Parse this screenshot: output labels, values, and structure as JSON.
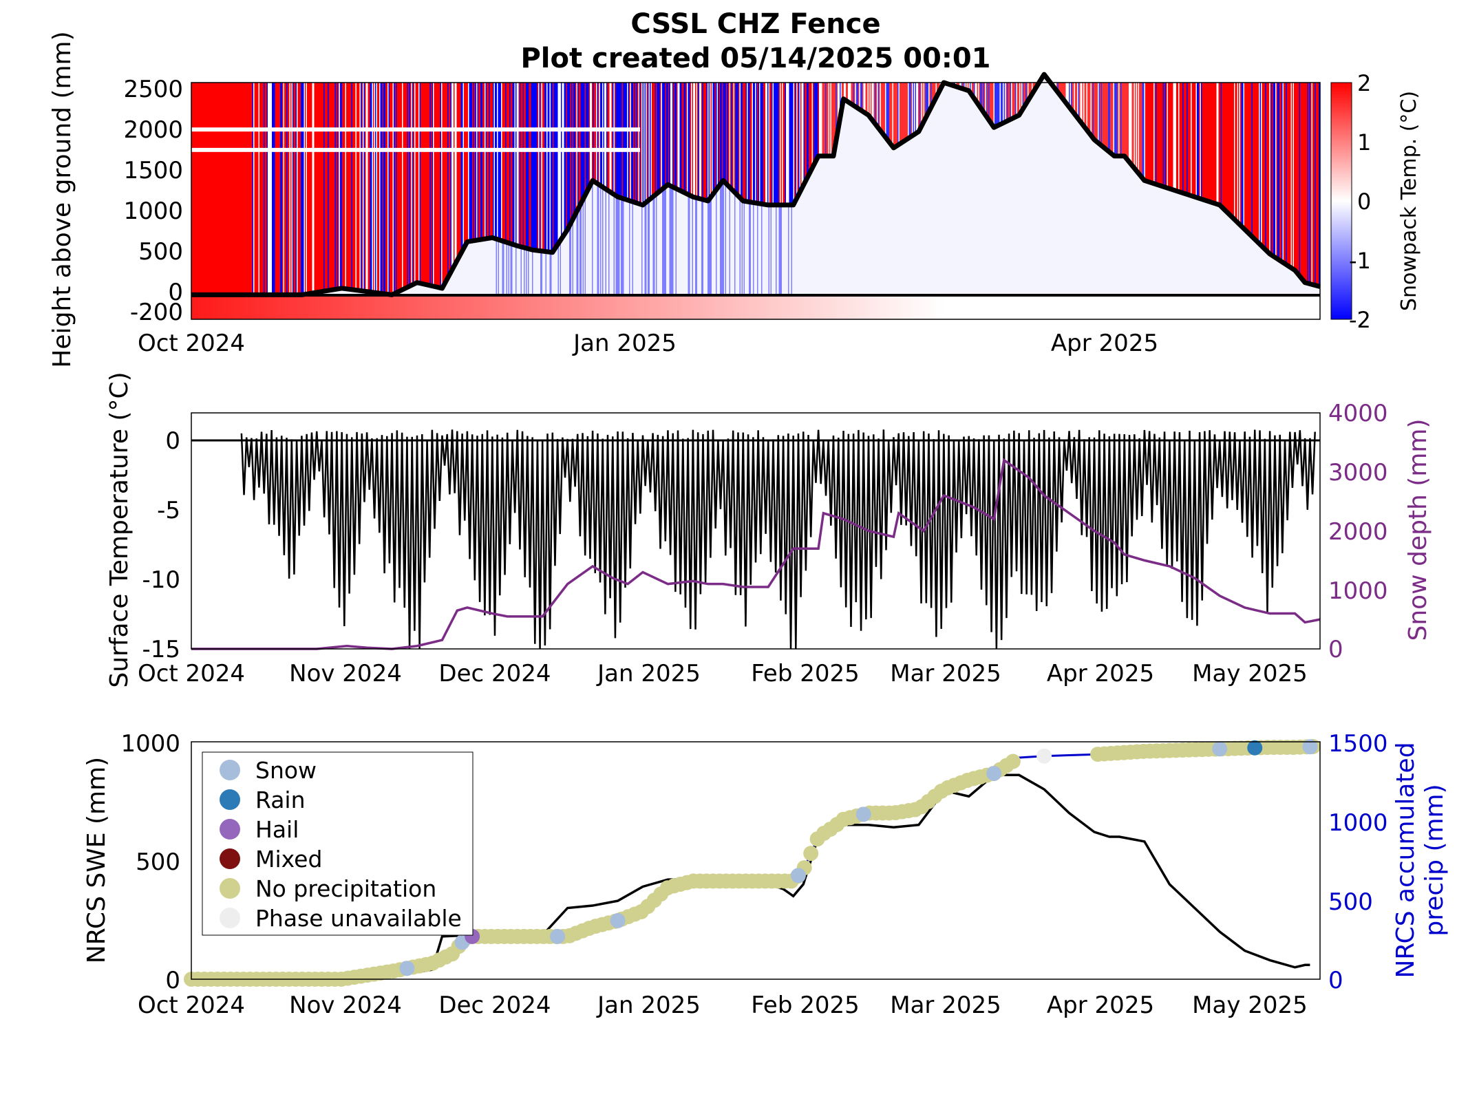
{
  "figure": {
    "title": "CSSL CHZ Fence",
    "subtitle": "Plot created 05/14/2025 00:01"
  },
  "colors": {
    "axes": "#000000",
    "warm": "#ff0000",
    "cold": "#0000ff",
    "snow_depth": "#7b2c86",
    "precip": "#0000cc",
    "snow": "#a6bddb",
    "rain": "#2c7bb6",
    "hail": "#9467bd",
    "mixed": "#7f1010",
    "no_precip": "#d1d18f",
    "unavailable": "#eeeeee"
  },
  "chart_data": [
    {
      "type": "heatmap",
      "ylabel": "Height above ground (mm)",
      "colorbar_label": "Snowpack Temp. (°C)",
      "colorbar_ticks": [
        "2",
        "1",
        "0",
        "-1",
        "-2"
      ],
      "clim": [
        -2,
        2
      ],
      "ylim": [
        -300,
        2600
      ],
      "yticks": [
        "2500",
        "2000",
        "1500",
        "1000",
        "500",
        "0",
        "-200"
      ],
      "xticks": [
        "Oct 2024",
        "Jan 2025",
        "Apr 2025"
      ],
      "xlim_days": [
        0,
        225
      ],
      "snow_depth_line": {
        "x_days": [
          0,
          22,
          30,
          40,
          45,
          50,
          55,
          60,
          65,
          68,
          72,
          75,
          80,
          85,
          90,
          95,
          100,
          103,
          106,
          110,
          115,
          120,
          125,
          128,
          130,
          135,
          140,
          145,
          150,
          155,
          160,
          165,
          170,
          175,
          180,
          184,
          186,
          190,
          195,
          200,
          205,
          210,
          215,
          220,
          222,
          225
        ],
        "y_mm": [
          0,
          0,
          80,
          0,
          150,
          80,
          650,
          700,
          600,
          550,
          520,
          800,
          1400,
          1200,
          1100,
          1350,
          1200,
          1150,
          1400,
          1150,
          1100,
          1100,
          1700,
          1700,
          2400,
          2200,
          1800,
          2000,
          2600,
          2500,
          2050,
          2200,
          2700,
          2300,
          1900,
          1700,
          1700,
          1400,
          1300,
          1200,
          1100,
          800,
          500,
          300,
          150,
          100
        ]
      }
    },
    {
      "type": "line",
      "ylabel": "Surface Temperature (°C)",
      "y2label": "Snow depth (mm)",
      "ylim": [
        -15,
        2
      ],
      "y2lim": [
        0,
        4000
      ],
      "yticks": [
        "0",
        "-5",
        "-10",
        "-15"
      ],
      "y2ticks": [
        "4000",
        "3000",
        "2000",
        "1000",
        "0"
      ],
      "xticks": [
        "Oct 2024",
        "Nov 2024",
        "Dec 2024",
        "Jan 2025",
        "Feb 2025",
        "Mar 2025",
        "Apr 2025",
        "May 2025"
      ],
      "xlim_days": [
        0,
        225
      ],
      "zero_line": 0,
      "snow_depth_series": {
        "x_days": [
          0,
          25,
          31,
          35,
          40,
          45,
          50,
          53,
          55,
          60,
          63,
          70,
          75,
          80,
          84,
          87,
          90,
          95,
          100,
          103,
          106,
          110,
          115,
          120,
          125,
          126,
          130,
          135,
          140,
          141,
          146,
          150,
          156,
          160,
          162,
          167,
          170,
          180,
          184,
          186,
          190,
          195,
          200,
          205,
          210,
          215,
          220,
          222,
          225
        ],
        "y_mm": [
          0,
          0,
          50,
          20,
          0,
          50,
          150,
          650,
          700,
          600,
          550,
          550,
          1100,
          1400,
          1200,
          1100,
          1300,
          1100,
          1150,
          1100,
          1100,
          1050,
          1050,
          1700,
          1700,
          2300,
          2200,
          2000,
          1900,
          2300,
          2000,
          2600,
          2400,
          2200,
          3200,
          2900,
          2600,
          2000,
          1800,
          1600,
          1500,
          1400,
          1200,
          900,
          700,
          600,
          600,
          450,
          500
        ]
      },
      "surface_temp_note_series": {
        "x_days": [
          10,
          15,
          20,
          25,
          30,
          35,
          40,
          45,
          50,
          55,
          60,
          65,
          70,
          75,
          80,
          85,
          90,
          95,
          100,
          105,
          110,
          115,
          120,
          125,
          130,
          135,
          140,
          145,
          150,
          155,
          160,
          165,
          170,
          175,
          180,
          185,
          190,
          195,
          200,
          205,
          210,
          215,
          220,
          224
        ],
        "y_degC": [
          -1,
          -3,
          -8,
          -1,
          -12,
          -2,
          -9,
          -14,
          -1,
          -6,
          -13,
          -4,
          -15,
          -1,
          -8,
          -12,
          -2,
          -7,
          -14,
          -3,
          -11,
          -6,
          -14,
          -1,
          -10,
          -12,
          -2,
          -9,
          -13,
          -3,
          -14,
          -8,
          -12,
          -1,
          -9,
          -11,
          -2,
          -7,
          -12,
          -1,
          -4,
          -11,
          -1,
          -3
        ]
      }
    },
    {
      "type": "scatter",
      "ylabel": "NRCS SWE (mm)",
      "y2label": "NRCS accumulated precip (mm)",
      "ylim": [
        0,
        1000
      ],
      "y2lim": [
        0,
        1500
      ],
      "yticks": [
        "1000",
        "500",
        "0"
      ],
      "y2ticks": [
        "1500",
        "1000",
        "500",
        "0"
      ],
      "xticks": [
        "Oct 2024",
        "Nov 2024",
        "Dec 2024",
        "Jan 2025",
        "Feb 2025",
        "Mar 2025",
        "Apr 2025",
        "May 2025"
      ],
      "xlim_days": [
        0,
        225
      ],
      "legend": {
        "placement": "top-left",
        "items": [
          {
            "label": "Snow",
            "key": "snow"
          },
          {
            "label": "Rain",
            "key": "rain"
          },
          {
            "label": "Hail",
            "key": "hail"
          },
          {
            "label": "Mixed",
            "key": "mixed"
          },
          {
            "label": "No precipitation",
            "key": "no_precip"
          },
          {
            "label": "Phase unavailable",
            "key": "unavailable"
          }
        ]
      },
      "swe": {
        "x_days": [
          0,
          30,
          35,
          40,
          45,
          48,
          50,
          55,
          60,
          65,
          70,
          75,
          80,
          85,
          90,
          95,
          100,
          105,
          110,
          115,
          118,
          120,
          122,
          125,
          128,
          130,
          135,
          140,
          145,
          150,
          151,
          155,
          160,
          165,
          170,
          175,
          180,
          183,
          185,
          190,
          195,
          200,
          205,
          210,
          215,
          220,
          222,
          223
        ],
        "y_mm": [
          0,
          0,
          5,
          20,
          30,
          40,
          180,
          185,
          185,
          185,
          185,
          300,
          310,
          330,
          390,
          420,
          420,
          420,
          420,
          400,
          380,
          350,
          400,
          600,
          640,
          650,
          650,
          640,
          650,
          790,
          790,
          770,
          860,
          860,
          800,
          700,
          620,
          600,
          600,
          580,
          400,
          300,
          200,
          120,
          80,
          50,
          60,
          60
        ]
      },
      "precip": {
        "x_days": [
          0,
          30,
          40,
          48,
          52,
          55,
          75,
          80,
          85,
          90,
          95,
          100,
          120,
          122,
          125,
          128,
          130,
          135,
          140,
          145,
          150,
          155,
          160,
          165,
          170,
          175,
          180,
          185,
          190,
          195,
          200,
          205,
          210,
          215,
          220,
          224
        ],
        "y_mm": [
          0,
          0,
          50,
          100,
          160,
          270,
          270,
          330,
          370,
          430,
          580,
          620,
          620,
          690,
          900,
          960,
          1010,
          1050,
          1050,
          1075,
          1200,
          1260,
          1300,
          1400,
          1410,
          1415,
          1420,
          1430,
          1440,
          1445,
          1450,
          1455,
          1460,
          1465,
          1465,
          1470
        ]
      },
      "phase_points": [
        {
          "x": 5,
          "y": 0,
          "phase": "no_precip"
        },
        {
          "x": 15,
          "y": 0,
          "phase": "no_precip"
        },
        {
          "x": 25,
          "y": 5,
          "phase": "no_precip"
        },
        {
          "x": 35,
          "y": 20,
          "phase": "no_precip"
        },
        {
          "x": 43,
          "y": 50,
          "phase": "snow"
        },
        {
          "x": 50,
          "y": 90,
          "phase": "no_precip"
        },
        {
          "x": 54,
          "y": 170,
          "phase": "snow"
        },
        {
          "x": 56,
          "y": 180,
          "phase": "hail"
        },
        {
          "x": 60,
          "y": 180,
          "phase": "no_precip"
        },
        {
          "x": 70,
          "y": 180,
          "phase": "no_precip"
        },
        {
          "x": 73,
          "y": 200,
          "phase": "snow"
        },
        {
          "x": 80,
          "y": 250,
          "phase": "no_precip"
        },
        {
          "x": 85,
          "y": 320,
          "phase": "snow"
        },
        {
          "x": 90,
          "y": 380,
          "phase": "no_precip"
        },
        {
          "x": 100,
          "y": 410,
          "phase": "no_precip"
        },
        {
          "x": 110,
          "y": 410,
          "phase": "no_precip"
        },
        {
          "x": 121,
          "y": 460,
          "phase": "snow"
        },
        {
          "x": 125,
          "y": 560,
          "phase": "no_precip"
        },
        {
          "x": 134,
          "y": 670,
          "phase": "snow"
        },
        {
          "x": 138,
          "y": 690,
          "phase": "no_precip"
        },
        {
          "x": 150,
          "y": 700,
          "phase": "no_precip"
        },
        {
          "x": 160,
          "y": 720,
          "phase": "snow"
        },
        {
          "x": 165,
          "y": 830,
          "phase": "no_precip"
        },
        {
          "x": 170,
          "y": 850,
          "phase": "unavailable"
        },
        {
          "x": 180,
          "y": 940,
          "phase": "no_precip"
        },
        {
          "x": 195,
          "y": 950,
          "phase": "no_precip"
        },
        {
          "x": 205,
          "y": 960,
          "phase": "snow"
        },
        {
          "x": 212,
          "y": 960,
          "phase": "rain"
        },
        {
          "x": 218,
          "y": 965,
          "phase": "no_precip"
        },
        {
          "x": 223,
          "y": 970,
          "phase": "snow"
        }
      ]
    }
  ]
}
